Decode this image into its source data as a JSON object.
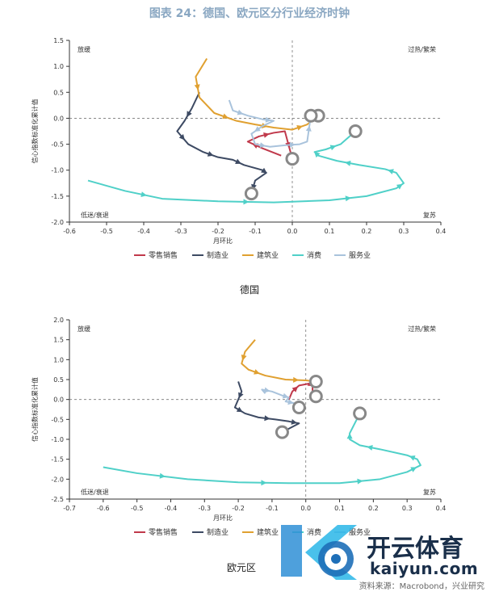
{
  "title": "图表 24：德国、欧元区分行业经济时钟",
  "captions": [
    "德国",
    "欧元区"
  ],
  "source": "资料来源：Macrobond，兴业研究",
  "watermark": {
    "brand": "开云体育",
    "domain": "kaiyun.com"
  },
  "chart_data": [
    {
      "type": "line",
      "title": "德国",
      "xlabel": "月环比",
      "ylabel": "信心指数标准化累计值",
      "xlim": [
        -0.6,
        0.4
      ],
      "ylim": [
        -2.0,
        1.5
      ],
      "x_ticks": [
        "-0.6",
        "-0.5",
        "-0.4",
        "-0.3",
        "-0.2",
        "-0.1",
        "0.0",
        "0.1",
        "0.2",
        "0.3",
        "0.4"
      ],
      "y_ticks": [
        "1.5",
        "1.0",
        "0.5",
        "0.0",
        "-0.5",
        "-1.0",
        "-1.5",
        "-2.0"
      ],
      "quadrants": {
        "top_left": "放缓",
        "top_right": "过热/繁荣",
        "bottom_left": "低迷/衰退",
        "bottom_right": "复苏"
      },
      "legend_position": "bottom",
      "series": [
        {
          "name": "零售销售",
          "color": "#c0394b",
          "points": [
            [
              -0.03,
              -0.72
            ],
            [
              -0.08,
              -0.58
            ],
            [
              -0.12,
              -0.45
            ],
            [
              -0.09,
              -0.35
            ],
            [
              -0.05,
              -0.28
            ],
            [
              -0.02,
              -0.25
            ],
            [
              0.0,
              -0.78
            ]
          ]
        },
        {
          "name": "制造业",
          "color": "#3d4a63",
          "points": [
            [
              -0.25,
              0.5
            ],
            [
              -0.27,
              0.2
            ],
            [
              -0.29,
              -0.05
            ],
            [
              -0.31,
              -0.25
            ],
            [
              -0.28,
              -0.5
            ],
            [
              -0.24,
              -0.65
            ],
            [
              -0.2,
              -0.75
            ],
            [
              -0.16,
              -0.8
            ],
            [
              -0.13,
              -0.9
            ],
            [
              -0.08,
              -1.0
            ],
            [
              -0.07,
              -1.05
            ],
            [
              -0.1,
              -1.2
            ],
            [
              -0.11,
              -1.45
            ]
          ]
        },
        {
          "name": "建筑业",
          "color": "#e0a030",
          "points": [
            [
              -0.23,
              1.15
            ],
            [
              -0.26,
              0.8
            ],
            [
              -0.25,
              0.4
            ],
            [
              -0.21,
              0.1
            ],
            [
              -0.15,
              -0.05
            ],
            [
              -0.1,
              -0.12
            ],
            [
              -0.05,
              -0.18
            ],
            [
              0.0,
              -0.22
            ],
            [
              0.04,
              -0.12
            ],
            [
              0.07,
              0.05
            ]
          ]
        },
        {
          "name": "消费",
          "color": "#4fd0c8",
          "points": [
            [
              -0.55,
              -1.2
            ],
            [
              -0.45,
              -1.4
            ],
            [
              -0.35,
              -1.55
            ],
            [
              -0.2,
              -1.6
            ],
            [
              -0.05,
              -1.62
            ],
            [
              0.1,
              -1.58
            ],
            [
              0.2,
              -1.5
            ],
            [
              0.28,
              -1.35
            ],
            [
              0.3,
              -1.25
            ],
            [
              0.28,
              -1.05
            ],
            [
              0.25,
              -0.98
            ],
            [
              0.18,
              -0.9
            ],
            [
              0.12,
              -0.82
            ],
            [
              0.07,
              -0.72
            ],
            [
              0.06,
              -0.65
            ],
            [
              0.09,
              -0.6
            ],
            [
              0.13,
              -0.5
            ],
            [
              0.17,
              -0.25
            ]
          ]
        },
        {
          "name": "服务业",
          "color": "#a9c3dc",
          "points": [
            [
              -0.17,
              0.35
            ],
            [
              -0.16,
              0.15
            ],
            [
              -0.12,
              0.05
            ],
            [
              -0.08,
              -0.02
            ],
            [
              -0.05,
              -0.05
            ],
            [
              -0.08,
              -0.15
            ],
            [
              -0.11,
              -0.3
            ],
            [
              -0.1,
              -0.5
            ],
            [
              -0.06,
              -0.55
            ],
            [
              -0.02,
              -0.52
            ],
            [
              0.02,
              -0.5
            ],
            [
              0.04,
              -0.45
            ],
            [
              0.05,
              0.05
            ]
          ]
        }
      ]
    },
    {
      "type": "line",
      "title": "欧元区",
      "xlabel": "月环比",
      "ylabel": "信心指数标准化累计值",
      "xlim": [
        -0.7,
        0.4
      ],
      "ylim": [
        -2.5,
        2.0
      ],
      "x_ticks": [
        "-0.7",
        "-0.6",
        "-0.5",
        "-0.4",
        "-0.3",
        "-0.2",
        "-0.1",
        "0.0",
        "0.1",
        "0.2",
        "0.3",
        "0.4"
      ],
      "y_ticks": [
        "2.0",
        "1.5",
        "1.0",
        "0.5",
        "0.0",
        "-0.5",
        "-1.0",
        "-1.5",
        "-2.0",
        "-2.5"
      ],
      "quadrants": {
        "top_left": "放缓",
        "top_right": "过热/繁荣",
        "bottom_left": "低迷/衰退",
        "bottom_right": "复苏"
      },
      "legend_position": "bottom",
      "series": [
        {
          "name": "零售销售",
          "color": "#c0394b",
          "points": [
            [
              -0.05,
              0.0
            ],
            [
              -0.04,
              0.2
            ],
            [
              -0.02,
              0.35
            ],
            [
              0.01,
              0.4
            ],
            [
              0.02,
              0.35
            ],
            [
              0.02,
              0.2
            ],
            [
              0.03,
              0.08
            ]
          ]
        },
        {
          "name": "制造业",
          "color": "#3d4a63",
          "points": [
            [
              -0.2,
              0.45
            ],
            [
              -0.19,
              0.2
            ],
            [
              -0.2,
              0.0
            ],
            [
              -0.21,
              -0.2
            ],
            [
              -0.18,
              -0.35
            ],
            [
              -0.14,
              -0.45
            ],
            [
              -0.09,
              -0.5
            ],
            [
              -0.05,
              -0.55
            ],
            [
              -0.02,
              -0.6
            ],
            [
              -0.07,
              -0.82
            ]
          ]
        },
        {
          "name": "建筑业",
          "color": "#e0a030",
          "points": [
            [
              -0.15,
              1.5
            ],
            [
              -0.18,
              1.2
            ],
            [
              -0.19,
              0.9
            ],
            [
              -0.17,
              0.75
            ],
            [
              -0.12,
              0.6
            ],
            [
              -0.06,
              0.5
            ],
            [
              0.0,
              0.48
            ],
            [
              0.03,
              0.45
            ]
          ]
        },
        {
          "name": "消费",
          "color": "#4fd0c8",
          "points": [
            [
              -0.6,
              -1.7
            ],
            [
              -0.5,
              -1.85
            ],
            [
              -0.35,
              -2.0
            ],
            [
              -0.2,
              -2.08
            ],
            [
              -0.05,
              -2.1
            ],
            [
              0.1,
              -2.1
            ],
            [
              0.22,
              -2.0
            ],
            [
              0.3,
              -1.82
            ],
            [
              0.34,
              -1.65
            ],
            [
              0.33,
              -1.5
            ],
            [
              0.3,
              -1.4
            ],
            [
              0.22,
              -1.25
            ],
            [
              0.16,
              -1.15
            ],
            [
              0.13,
              -1.0
            ],
            [
              0.13,
              -0.85
            ],
            [
              0.16,
              -0.35
            ]
          ]
        },
        {
          "name": "服务业",
          "color": "#a9c3dc",
          "points": [
            [
              -0.12,
              0.15
            ],
            [
              -0.13,
              0.25
            ],
            [
              -0.1,
              0.2
            ],
            [
              -0.07,
              0.1
            ],
            [
              -0.05,
              0.05
            ],
            [
              -0.06,
              -0.05
            ],
            [
              -0.03,
              -0.1
            ],
            [
              -0.02,
              -0.2
            ]
          ]
        }
      ]
    }
  ]
}
